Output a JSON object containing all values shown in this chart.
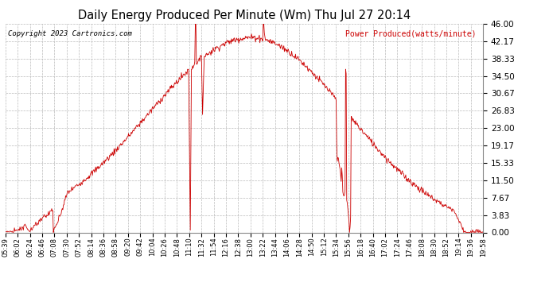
{
  "title": "Daily Energy Produced Per Minute (Wm) Thu Jul 27 20:14",
  "copyright": "Copyright 2023 Cartronics.com",
  "legend_label": "Power Produced(watts/minute)",
  "line_color": "#cc0000",
  "background_color": "#ffffff",
  "grid_color": "#bbbbbb",
  "yticks": [
    0.0,
    3.83,
    7.67,
    11.5,
    15.33,
    19.17,
    23.0,
    26.83,
    30.67,
    34.5,
    38.33,
    42.17,
    46.0
  ],
  "ymax": 46.0,
  "ymin": 0.0,
  "xtick_labels": [
    "05:39",
    "06:02",
    "06:24",
    "06:46",
    "07:08",
    "07:30",
    "07:52",
    "08:14",
    "08:36",
    "08:58",
    "09:20",
    "09:42",
    "10:04",
    "10:26",
    "10:48",
    "11:10",
    "11:32",
    "11:54",
    "12:16",
    "12:38",
    "13:00",
    "13:22",
    "13:44",
    "14:06",
    "14:28",
    "14:50",
    "15:12",
    "15:34",
    "15:56",
    "16:18",
    "16:40",
    "17:02",
    "17:24",
    "17:46",
    "18:08",
    "18:30",
    "18:52",
    "19:14",
    "19:36",
    "19:58"
  ]
}
